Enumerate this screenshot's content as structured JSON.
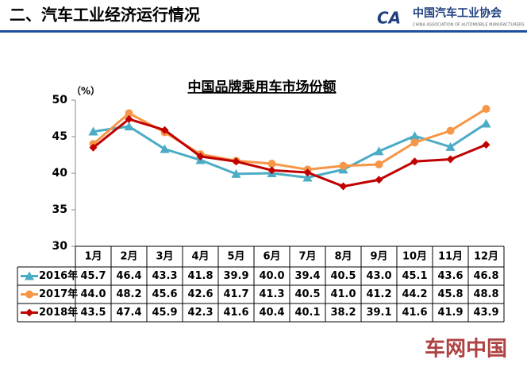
{
  "header": {
    "title": "二、汽车工业经济运行情况",
    "logo_name": "中国汽车工业协会",
    "logo_sub": "CHINA ASSOCIATION OF AUTOMOBILE MANUFACTURERS"
  },
  "watermark": "车网中国",
  "chart_data": {
    "type": "line",
    "title": "中国品牌乘用车市场份额",
    "y_label": "（%）",
    "categories": [
      "1月",
      "2月",
      "3月",
      "4月",
      "5月",
      "6月",
      "7月",
      "8月",
      "9月",
      "10月",
      "11月",
      "12月"
    ],
    "ylim": [
      30,
      50
    ],
    "yticks": [
      30,
      35,
      40,
      45,
      50
    ],
    "series": [
      {
        "name": "2016年",
        "color": "#4bacc6",
        "marker": "triangle",
        "values": [
          45.7,
          46.4,
          43.3,
          41.8,
          39.9,
          40.0,
          39.4,
          40.5,
          43.0,
          45.1,
          43.6,
          46.8
        ],
        "value_labels": [
          "45.7",
          "46.4",
          "43.3",
          "41.8",
          "39.9",
          "40.0",
          "39.4",
          "40.5",
          "43.0",
          "45.1",
          "43.6",
          "46.8"
        ]
      },
      {
        "name": "2017年",
        "color": "#f79646",
        "marker": "circle",
        "values": [
          44.0,
          48.2,
          45.6,
          42.6,
          41.7,
          41.3,
          40.5,
          41.0,
          41.2,
          44.2,
          45.8,
          48.8
        ],
        "value_labels": [
          "44.0",
          "48.2",
          "45.6",
          "42.6",
          "41.7",
          "41.3",
          "40.5",
          "41.0",
          "41.2",
          "44.2",
          "45.8",
          "48.8"
        ]
      },
      {
        "name": "2018年",
        "color": "#c00000",
        "marker": "diamond",
        "values": [
          43.5,
          47.4,
          45.9,
          42.3,
          41.6,
          40.4,
          40.1,
          38.2,
          39.1,
          41.6,
          41.9,
          43.9
        ],
        "value_labels": [
          "43.5",
          "47.4",
          "45.9",
          "42.3",
          "41.6",
          "40.4",
          "40.1",
          "38.2",
          "39.1",
          "41.6",
          "41.9",
          "43.9"
        ]
      }
    ]
  }
}
